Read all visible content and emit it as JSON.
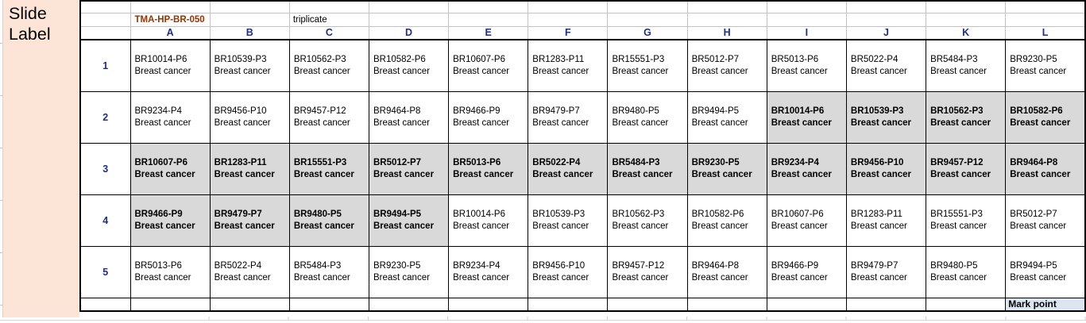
{
  "slide_label": "Slide Label",
  "title": "TMA-HP-BR-050",
  "note": "triplicate",
  "column_headers": [
    "A",
    "B",
    "C",
    "D",
    "E",
    "F",
    "G",
    "H",
    "I",
    "J",
    "K",
    "L"
  ],
  "mark_point": "Mark point",
  "colors": {
    "slide_label_bg": "#FCE4D6",
    "highlight_bg": "#D9D9D9",
    "mark_point_bg": "#DCE6F1",
    "title_color": "#993300",
    "header_color": "#1F2D8C"
  },
  "rows": [
    {
      "number": "1",
      "cells": [
        {
          "sample": "BR10014-P6",
          "diagnosis": "Breast cancer",
          "highlighted": false
        },
        {
          "sample": "BR10539-P3",
          "diagnosis": "Breast cancer",
          "highlighted": false
        },
        {
          "sample": "BR10562-P3",
          "diagnosis": "Breast cancer",
          "highlighted": false
        },
        {
          "sample": "BR10582-P6",
          "diagnosis": "Breast cancer",
          "highlighted": false
        },
        {
          "sample": "BR10607-P6",
          "diagnosis": "Breast cancer",
          "highlighted": false
        },
        {
          "sample": "BR1283-P11",
          "diagnosis": "Breast cancer",
          "highlighted": false
        },
        {
          "sample": "BR15551-P3",
          "diagnosis": "Breast cancer",
          "highlighted": false
        },
        {
          "sample": "BR5012-P7",
          "diagnosis": "Breast cancer",
          "highlighted": false
        },
        {
          "sample": "BR5013-P6",
          "diagnosis": "Breast cancer",
          "highlighted": false
        },
        {
          "sample": "BR5022-P4",
          "diagnosis": "Breast cancer",
          "highlighted": false
        },
        {
          "sample": "BR5484-P3",
          "diagnosis": "Breast cancer",
          "highlighted": false
        },
        {
          "sample": "BR9230-P5",
          "diagnosis": "Breast cancer",
          "highlighted": false
        }
      ]
    },
    {
      "number": "2",
      "cells": [
        {
          "sample": "BR9234-P4",
          "diagnosis": "Breast cancer",
          "highlighted": false
        },
        {
          "sample": "BR9456-P10",
          "diagnosis": "Breast cancer",
          "highlighted": false
        },
        {
          "sample": "BR9457-P12",
          "diagnosis": "Breast cancer",
          "highlighted": false
        },
        {
          "sample": "BR9464-P8",
          "diagnosis": "Breast cancer",
          "highlighted": false
        },
        {
          "sample": "BR9466-P9",
          "diagnosis": "Breast cancer",
          "highlighted": false
        },
        {
          "sample": "BR9479-P7",
          "diagnosis": "Breast cancer",
          "highlighted": false
        },
        {
          "sample": "BR9480-P5",
          "diagnosis": "Breast cancer",
          "highlighted": false
        },
        {
          "sample": "BR9494-P5",
          "diagnosis": "Breast cancer",
          "highlighted": false
        },
        {
          "sample": "BR10014-P6",
          "diagnosis": "Breast cancer",
          "highlighted": true
        },
        {
          "sample": "BR10539-P3",
          "diagnosis": "Breast cancer",
          "highlighted": true
        },
        {
          "sample": "BR10562-P3",
          "diagnosis": "Breast cancer",
          "highlighted": true
        },
        {
          "sample": "BR10582-P6",
          "diagnosis": "Breast cancer",
          "highlighted": true
        }
      ]
    },
    {
      "number": "3",
      "cells": [
        {
          "sample": "BR10607-P6",
          "diagnosis": "Breast cancer",
          "highlighted": true
        },
        {
          "sample": "BR1283-P11",
          "diagnosis": "Breast cancer",
          "highlighted": true
        },
        {
          "sample": "BR15551-P3",
          "diagnosis": "Breast cancer",
          "highlighted": true
        },
        {
          "sample": "BR5012-P7",
          "diagnosis": "Breast cancer",
          "highlighted": true
        },
        {
          "sample": "BR5013-P6",
          "diagnosis": "Breast cancer",
          "highlighted": true
        },
        {
          "sample": "BR5022-P4",
          "diagnosis": "Breast cancer",
          "highlighted": true
        },
        {
          "sample": "BR5484-P3",
          "diagnosis": "Breast cancer",
          "highlighted": true
        },
        {
          "sample": "BR9230-P5",
          "diagnosis": "Breast cancer",
          "highlighted": true
        },
        {
          "sample": "BR9234-P4",
          "diagnosis": "Breast cancer",
          "highlighted": true
        },
        {
          "sample": "BR9456-P10",
          "diagnosis": "Breast cancer",
          "highlighted": true
        },
        {
          "sample": "BR9457-P12",
          "diagnosis": "Breast cancer",
          "highlighted": true
        },
        {
          "sample": "BR9464-P8",
          "diagnosis": "Breast cancer",
          "highlighted": true
        }
      ]
    },
    {
      "number": "4",
      "cells": [
        {
          "sample": "BR9466-P9",
          "diagnosis": "Breast cancer",
          "highlighted": true
        },
        {
          "sample": "BR9479-P7",
          "diagnosis": "Breast cancer",
          "highlighted": true
        },
        {
          "sample": "BR9480-P5",
          "diagnosis": "Breast cancer",
          "highlighted": true
        },
        {
          "sample": "BR9494-P5",
          "diagnosis": "Breast cancer",
          "highlighted": true
        },
        {
          "sample": "BR10014-P6",
          "diagnosis": "Breast cancer",
          "highlighted": false
        },
        {
          "sample": "BR10539-P3",
          "diagnosis": "Breast cancer",
          "highlighted": false
        },
        {
          "sample": "BR10562-P3",
          "diagnosis": "Breast cancer",
          "highlighted": false
        },
        {
          "sample": "BR10582-P6",
          "diagnosis": "Breast cancer",
          "highlighted": false
        },
        {
          "sample": "BR10607-P6",
          "diagnosis": "Breast cancer",
          "highlighted": false
        },
        {
          "sample": "BR1283-P11",
          "diagnosis": "Breast cancer",
          "highlighted": false
        },
        {
          "sample": "BR15551-P3",
          "diagnosis": "Breast cancer",
          "highlighted": false
        },
        {
          "sample": "BR5012-P7",
          "diagnosis": "Breast cancer",
          "highlighted": false
        }
      ]
    },
    {
      "number": "5",
      "cells": [
        {
          "sample": "BR5013-P6",
          "diagnosis": "Breast cancer",
          "highlighted": false
        },
        {
          "sample": "BR5022-P4",
          "diagnosis": "Breast cancer",
          "highlighted": false
        },
        {
          "sample": "BR5484-P3",
          "diagnosis": "Breast cancer",
          "highlighted": false
        },
        {
          "sample": "BR9230-P5",
          "diagnosis": "Breast cancer",
          "highlighted": false
        },
        {
          "sample": "BR9234-P4",
          "diagnosis": "Breast cancer",
          "highlighted": false
        },
        {
          "sample": "BR9456-P10",
          "diagnosis": "Breast cancer",
          "highlighted": false
        },
        {
          "sample": "BR9457-P12",
          "diagnosis": "Breast cancer",
          "highlighted": false
        },
        {
          "sample": "BR9464-P8",
          "diagnosis": "Breast cancer",
          "highlighted": false
        },
        {
          "sample": "BR9466-P9",
          "diagnosis": "Breast cancer",
          "highlighted": false
        },
        {
          "sample": "BR9479-P7",
          "diagnosis": "Breast cancer",
          "highlighted": false
        },
        {
          "sample": "BR9480-P5",
          "diagnosis": "Breast cancer",
          "highlighted": false
        },
        {
          "sample": "BR9494-P5",
          "diagnosis": "Breast cancer",
          "highlighted": false
        }
      ]
    }
  ]
}
